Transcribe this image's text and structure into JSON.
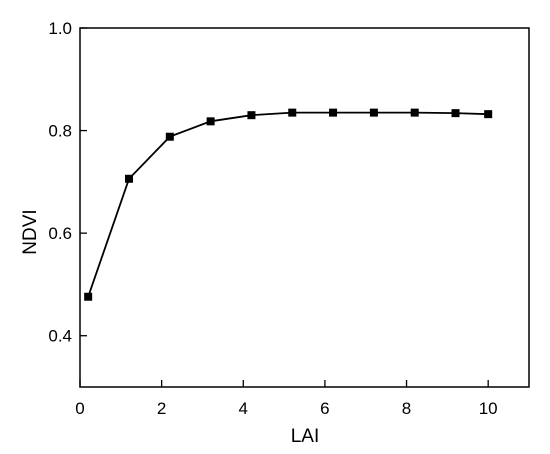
{
  "chart_data": {
    "type": "line",
    "xlabel": "LAI",
    "ylabel": "NDVI",
    "xlim": [
      0,
      11
    ],
    "ylim": [
      0.3,
      1.0
    ],
    "xticks": [
      "0",
      "2",
      "4",
      "6",
      "8",
      "10"
    ],
    "yticks": [
      "0.4",
      "0.6",
      "0.8",
      "1.0"
    ],
    "grid": false,
    "series": [
      {
        "marker": "square",
        "x": [
          0.2,
          1.2,
          2.2,
          3.2,
          4.2,
          5.2,
          6.2,
          7.2,
          8.2,
          9.2,
          10.0
        ],
        "y": [
          0.476,
          0.706,
          0.788,
          0.818,
          0.83,
          0.835,
          0.835,
          0.835,
          0.835,
          0.834,
          0.832
        ]
      }
    ]
  }
}
